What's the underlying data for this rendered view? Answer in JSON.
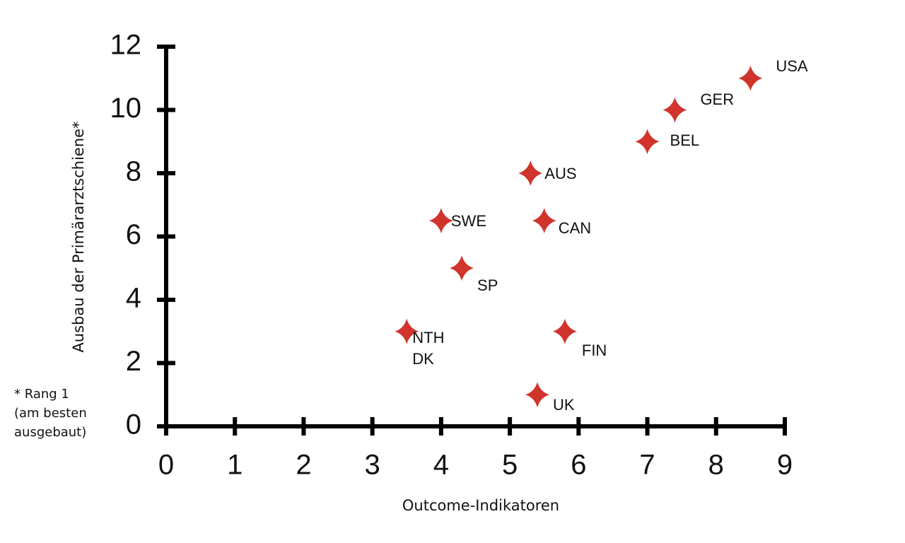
{
  "chart_data": {
    "type": "scatter",
    "x_label": "Outcome-Indikatoren",
    "y_label": "Ausbau der Primärarztschiene*",
    "footnote": "* Rang 1\n(am besten\nausgebaut)",
    "xlim": [
      0,
      9
    ],
    "xticks": [
      0,
      1,
      2,
      3,
      4,
      5,
      6,
      7,
      8,
      9
    ],
    "ylim": [
      0,
      12
    ],
    "yticks": [
      0,
      2,
      4,
      6,
      8,
      10,
      12
    ],
    "x": [
      8.5,
      7.4,
      7,
      5.3,
      4,
      5.5,
      4.3,
      3.5,
      5.8,
      5.4
    ],
    "series": [
      {
        "color": "#d0342c",
        "values": [
          11,
          10,
          9,
          8,
          6.5,
          6.5,
          5,
          3,
          3,
          1
        ],
        "point_labels": [
          "USA",
          "GER",
          "BEL",
          "AUS",
          "SWE",
          "CAN",
          "SP",
          "NTH\nDK",
          "FIN",
          "UK"
        ]
      }
    ]
  }
}
